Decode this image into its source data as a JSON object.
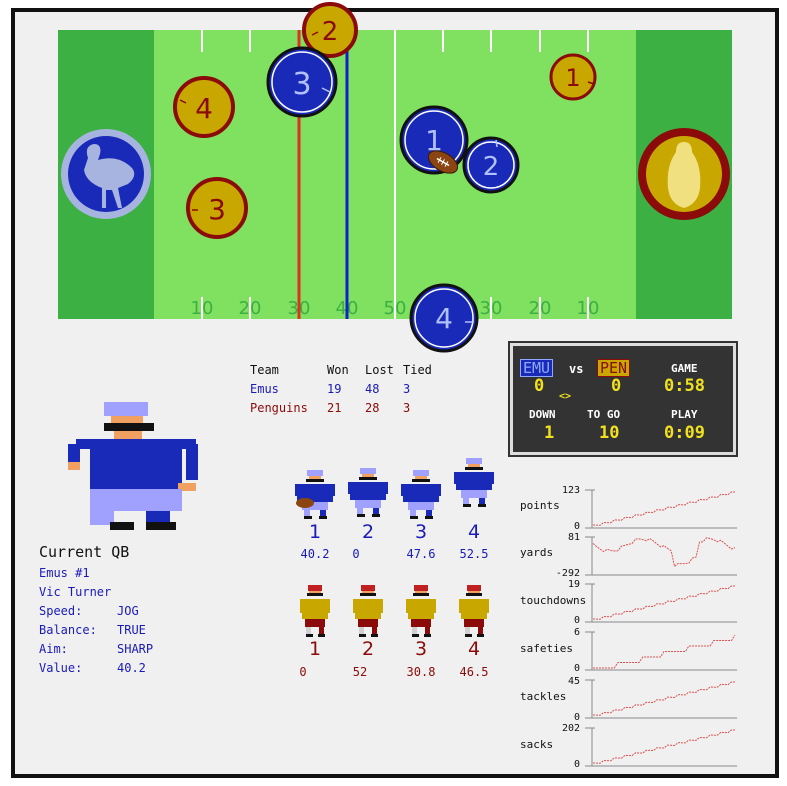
{
  "field": {
    "yard_labels": [
      "10",
      "20",
      "30",
      "40",
      "50",
      "30",
      "20",
      "10"
    ],
    "line_of_scrimmage_color": "#e03020",
    "first_down_color": "#1020d0",
    "emu_token_color": "#1a2ab8",
    "penguin_token_color": "#c8a800",
    "emu_logo": "emu-icon",
    "penguin_logo": "penguin-icon",
    "ball_icon": "football-icon",
    "emu_players": [
      "1",
      "2",
      "3",
      "4"
    ],
    "penguin_players": [
      "1",
      "2",
      "3",
      "4"
    ]
  },
  "standings": {
    "headers": {
      "team": "Team",
      "won": "Won",
      "lost": "Lost",
      "tied": "Tied"
    },
    "rows": [
      {
        "team": "Emus",
        "won": "19",
        "lost": "48",
        "tied": "3"
      },
      {
        "team": "Penguins",
        "won": "21",
        "lost": "28",
        "tied": "3"
      }
    ]
  },
  "scoreboard": {
    "home": "EMU",
    "vs": "vs",
    "away": "PEN",
    "home_score": "0",
    "away_score": "0",
    "game_label": "GAME",
    "game_clock": "0:58",
    "possession": "<>",
    "down_label": "DOWN",
    "down": "1",
    "togo_label": "TO GO",
    "togo": "10",
    "play_label": "PLAY",
    "play_clock": "0:09"
  },
  "current_qb": {
    "title": "Current QB",
    "team_line": "Emus #1",
    "name": "Vic Turner",
    "speed_label": "Speed:",
    "speed": "JOG",
    "balance_label": "Balance:",
    "balance": "TRUE",
    "aim_label": "Aim:",
    "aim": "SHARP",
    "value_label": "Value:",
    "value": "40.2"
  },
  "roster": {
    "emus": [
      {
        "num": "1",
        "value": "40.2"
      },
      {
        "num": "2",
        "value": "0"
      },
      {
        "num": "3",
        "value": "47.6"
      },
      {
        "num": "4",
        "value": "52.5"
      }
    ],
    "penguins": [
      {
        "num": "1",
        "value": "0"
      },
      {
        "num": "2",
        "value": "52"
      },
      {
        "num": "3",
        "value": "30.8"
      },
      {
        "num": "4",
        "value": "46.5"
      }
    ]
  },
  "metrics": [
    {
      "label": "points",
      "max": "123",
      "min": "0"
    },
    {
      "label": "yards",
      "max": "81",
      "min": "-292"
    },
    {
      "label": "touchdowns",
      "max": "19",
      "min": "0"
    },
    {
      "label": "safeties",
      "max": "6",
      "min": "0"
    },
    {
      "label": "tackles",
      "max": "45",
      "min": "0"
    },
    {
      "label": "sacks",
      "max": "202",
      "min": "0"
    }
  ]
}
